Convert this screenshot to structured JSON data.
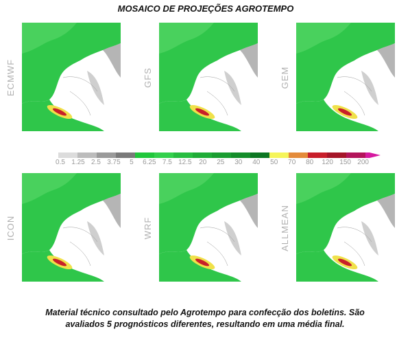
{
  "title": "MOSAICO DE PROJEÇÕES AGROTEMPO",
  "panels": [
    {
      "label": "ECMWF"
    },
    {
      "label": "GFS"
    },
    {
      "label": "GEM"
    },
    {
      "label": "ICON"
    },
    {
      "label": "WRF"
    },
    {
      "label": "ALLMEAN"
    }
  ],
  "colorbar": {
    "labels": [
      "0.5",
      "1.25",
      "2.5",
      "3.75",
      "5",
      "6.25",
      "7.5",
      "12.5",
      "20",
      "25",
      "30",
      "40",
      "50",
      "70",
      "80",
      "120",
      "150",
      "200"
    ],
    "colors": [
      "#dcdcdc",
      "#bcbcbc",
      "#9a9a9a",
      "#7a7a7a",
      "#20c73b",
      "#33d04c",
      "#27bd40",
      "#1fac37",
      "#1a9d31",
      "#148d2a",
      "#0c7622",
      "#f5f55a",
      "#e48b3a",
      "#c81e2a",
      "#a51528",
      "#b3145a",
      "#d61aa0"
    ]
  },
  "caption": [
    "Material técnico consultado pelo Agrotempo para confecção dos boletins. São",
    "avaliados 5 prognósticos diferentes, resultando em uma média final."
  ]
}
